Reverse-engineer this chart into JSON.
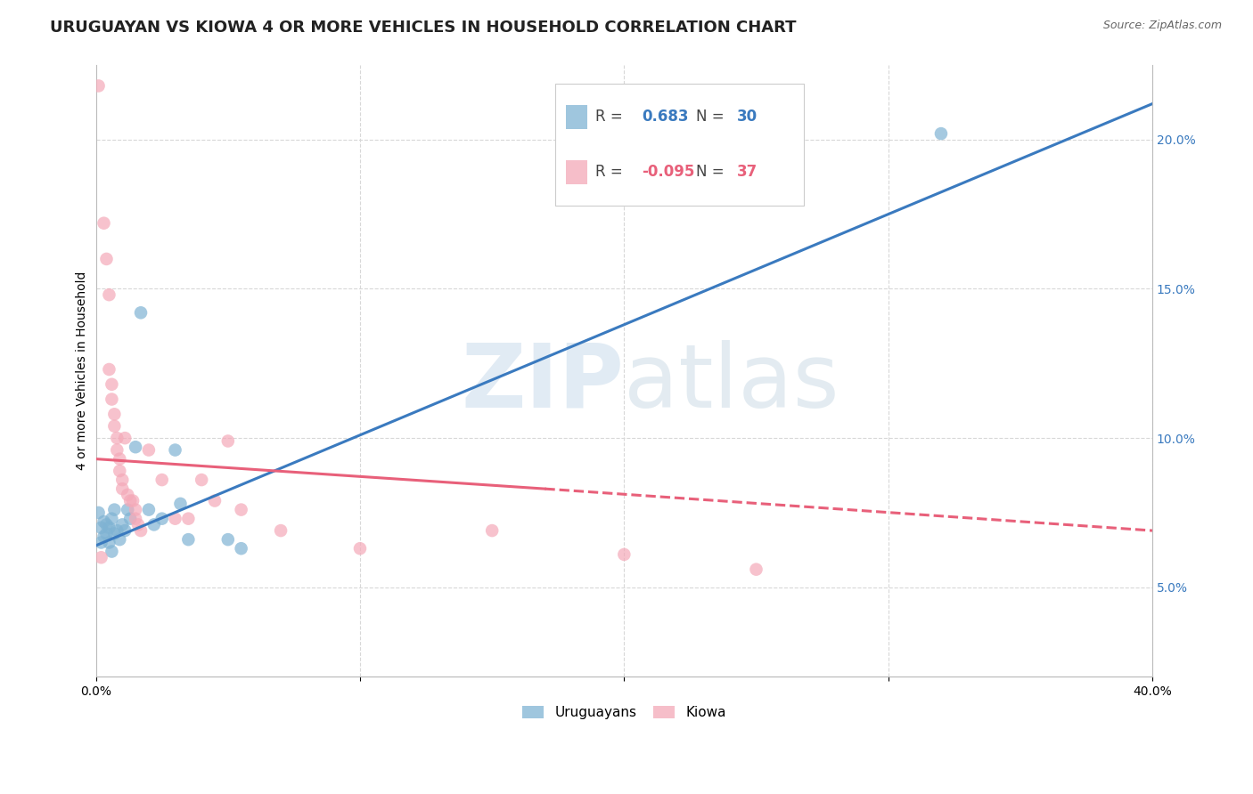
{
  "title": "URUGUAYAN VS KIOWA 4 OR MORE VEHICLES IN HOUSEHOLD CORRELATION CHART",
  "source": "Source: ZipAtlas.com",
  "ylabel": "4 or more Vehicles in Household",
  "xlim": [
    0.0,
    0.4
  ],
  "ylim": [
    0.02,
    0.225
  ],
  "x_ticks": [
    0.0,
    0.1,
    0.2,
    0.3,
    0.4
  ],
  "x_tick_labels": [
    "0.0%",
    "",
    "",
    "",
    "40.0%"
  ],
  "y_ticks_right": [
    0.05,
    0.1,
    0.15,
    0.2
  ],
  "y_tick_labels_right": [
    "5.0%",
    "10.0%",
    "15.0%",
    "20.0%"
  ],
  "legend_r_blue": "0.683",
  "legend_n_blue": "30",
  "legend_r_pink": "-0.095",
  "legend_n_pink": "37",
  "blue_color": "#7fb3d3",
  "pink_color": "#f4a9b8",
  "blue_line_color": "#3a7abf",
  "pink_line_color": "#e8607a",
  "watermark_zip": "ZIP",
  "watermark_atlas": "atlas",
  "blue_points": [
    [
      0.001,
      0.075
    ],
    [
      0.002,
      0.07
    ],
    [
      0.002,
      0.065
    ],
    [
      0.003,
      0.072
    ],
    [
      0.003,
      0.067
    ],
    [
      0.004,
      0.071
    ],
    [
      0.004,
      0.068
    ],
    [
      0.005,
      0.07
    ],
    [
      0.005,
      0.065
    ],
    [
      0.006,
      0.073
    ],
    [
      0.006,
      0.062
    ],
    [
      0.007,
      0.076
    ],
    [
      0.007,
      0.068
    ],
    [
      0.008,
      0.069
    ],
    [
      0.009,
      0.066
    ],
    [
      0.01,
      0.071
    ],
    [
      0.011,
      0.069
    ],
    [
      0.012,
      0.076
    ],
    [
      0.013,
      0.073
    ],
    [
      0.015,
      0.097
    ],
    [
      0.017,
      0.142
    ],
    [
      0.02,
      0.076
    ],
    [
      0.022,
      0.071
    ],
    [
      0.025,
      0.073
    ],
    [
      0.03,
      0.096
    ],
    [
      0.032,
      0.078
    ],
    [
      0.035,
      0.066
    ],
    [
      0.05,
      0.066
    ],
    [
      0.055,
      0.063
    ],
    [
      0.32,
      0.202
    ]
  ],
  "pink_points": [
    [
      0.001,
      0.218
    ],
    [
      0.003,
      0.172
    ],
    [
      0.004,
      0.16
    ],
    [
      0.005,
      0.148
    ],
    [
      0.005,
      0.123
    ],
    [
      0.006,
      0.118
    ],
    [
      0.006,
      0.113
    ],
    [
      0.007,
      0.108
    ],
    [
      0.007,
      0.104
    ],
    [
      0.008,
      0.1
    ],
    [
      0.008,
      0.096
    ],
    [
      0.009,
      0.093
    ],
    [
      0.009,
      0.089
    ],
    [
      0.01,
      0.086
    ],
    [
      0.01,
      0.083
    ],
    [
      0.011,
      0.1
    ],
    [
      0.012,
      0.081
    ],
    [
      0.013,
      0.079
    ],
    [
      0.014,
      0.079
    ],
    [
      0.015,
      0.076
    ],
    [
      0.015,
      0.073
    ],
    [
      0.016,
      0.071
    ],
    [
      0.017,
      0.069
    ],
    [
      0.02,
      0.096
    ],
    [
      0.025,
      0.086
    ],
    [
      0.03,
      0.073
    ],
    [
      0.035,
      0.073
    ],
    [
      0.04,
      0.086
    ],
    [
      0.045,
      0.079
    ],
    [
      0.05,
      0.099
    ],
    [
      0.055,
      0.076
    ],
    [
      0.07,
      0.069
    ],
    [
      0.1,
      0.063
    ],
    [
      0.15,
      0.069
    ],
    [
      0.2,
      0.061
    ],
    [
      0.25,
      0.056
    ],
    [
      0.002,
      0.06
    ]
  ],
  "blue_line": [
    [
      0.0,
      0.064
    ],
    [
      0.4,
      0.212
    ]
  ],
  "pink_line_solid": [
    [
      0.0,
      0.093
    ],
    [
      0.17,
      0.083
    ]
  ],
  "pink_line_dashed": [
    [
      0.17,
      0.083
    ],
    [
      0.4,
      0.069
    ]
  ],
  "background_color": "#ffffff",
  "grid_color": "#d8d8d8",
  "title_fontsize": 13,
  "axis_label_fontsize": 10,
  "tick_fontsize": 10,
  "legend_fontsize": 12
}
